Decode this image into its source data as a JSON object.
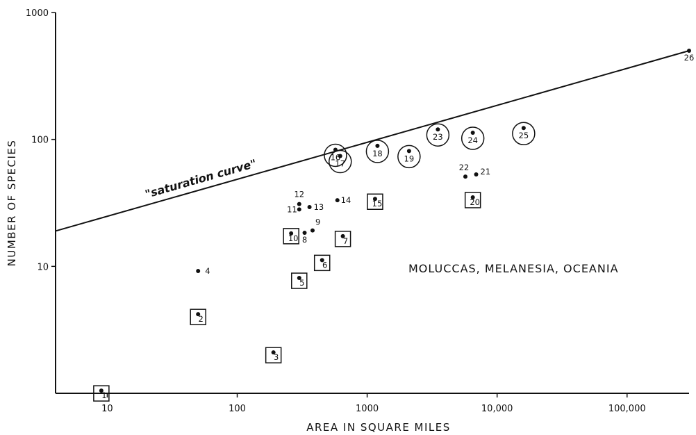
{
  "chart_data": {
    "type": "scatter",
    "title": "",
    "xlabel": "AREA IN SQUARE MILES",
    "ylabel": "NUMBER OF SPECIES",
    "x_scale": "log",
    "y_scale": "log",
    "xlim": [
      4,
      300000
    ],
    "ylim": [
      1,
      1000
    ],
    "x_ticks": [
      10,
      100,
      1000,
      10000,
      100000
    ],
    "x_tick_labels": [
      "10",
      "100",
      "1000",
      "10,000",
      "100,000"
    ],
    "y_ticks": [
      10,
      100,
      1000
    ],
    "y_tick_labels": [
      "10",
      "100",
      "1000"
    ],
    "grid": false,
    "annotation": "MOLUCCAS, MELANESIA, OCEANIA",
    "curve": {
      "label": "\"saturation curve\"",
      "points": [
        [
          4,
          19
        ],
        [
          300000,
          500
        ]
      ]
    },
    "points": [
      {
        "label": "1",
        "x": 9,
        "y": 1.05,
        "marker": "square"
      },
      {
        "label": "2",
        "x": 50,
        "y": 4.2,
        "marker": "square"
      },
      {
        "label": "3",
        "x": 190,
        "y": 2.1,
        "marker": "square"
      },
      {
        "label": "4",
        "x": 50,
        "y": 9.2,
        "marker": "none"
      },
      {
        "label": "5",
        "x": 300,
        "y": 8.1,
        "marker": "square"
      },
      {
        "label": "6",
        "x": 450,
        "y": 11.2,
        "marker": "square"
      },
      {
        "label": "7",
        "x": 650,
        "y": 17.3,
        "marker": "square"
      },
      {
        "label": "8",
        "x": 330,
        "y": 18.4,
        "marker": "none"
      },
      {
        "label": "9",
        "x": 380,
        "y": 19.2,
        "marker": "none"
      },
      {
        "label": "10",
        "x": 260,
        "y": 18.2,
        "marker": "square"
      },
      {
        "label": "11",
        "x": 300,
        "y": 28.1,
        "marker": "none"
      },
      {
        "label": "12",
        "x": 300,
        "y": 31.0,
        "marker": "none"
      },
      {
        "label": "13",
        "x": 360,
        "y": 29.3,
        "marker": "none"
      },
      {
        "label": "14",
        "x": 590,
        "y": 33.2,
        "marker": "none"
      },
      {
        "label": "15",
        "x": 1150,
        "y": 34.0,
        "marker": "square"
      },
      {
        "label": "16",
        "x": 570,
        "y": 83.0,
        "marker": "circle"
      },
      {
        "label": "17",
        "x": 620,
        "y": 74.0,
        "marker": "circle"
      },
      {
        "label": "18",
        "x": 1200,
        "y": 89.0,
        "marker": "circle"
      },
      {
        "label": "19",
        "x": 2100,
        "y": 81.0,
        "marker": "circle"
      },
      {
        "label": "20",
        "x": 6500,
        "y": 35.0,
        "marker": "square"
      },
      {
        "label": "21",
        "x": 6900,
        "y": 53.0,
        "marker": "none"
      },
      {
        "label": "22",
        "x": 5700,
        "y": 51.0,
        "marker": "none"
      },
      {
        "label": "23",
        "x": 3500,
        "y": 120.0,
        "marker": "circle"
      },
      {
        "label": "24",
        "x": 6500,
        "y": 113.0,
        "marker": "circle"
      },
      {
        "label": "25",
        "x": 16000,
        "y": 123.0,
        "marker": "circle"
      },
      {
        "label": "26",
        "x": 300000,
        "y": 500.0,
        "marker": "none"
      }
    ]
  }
}
